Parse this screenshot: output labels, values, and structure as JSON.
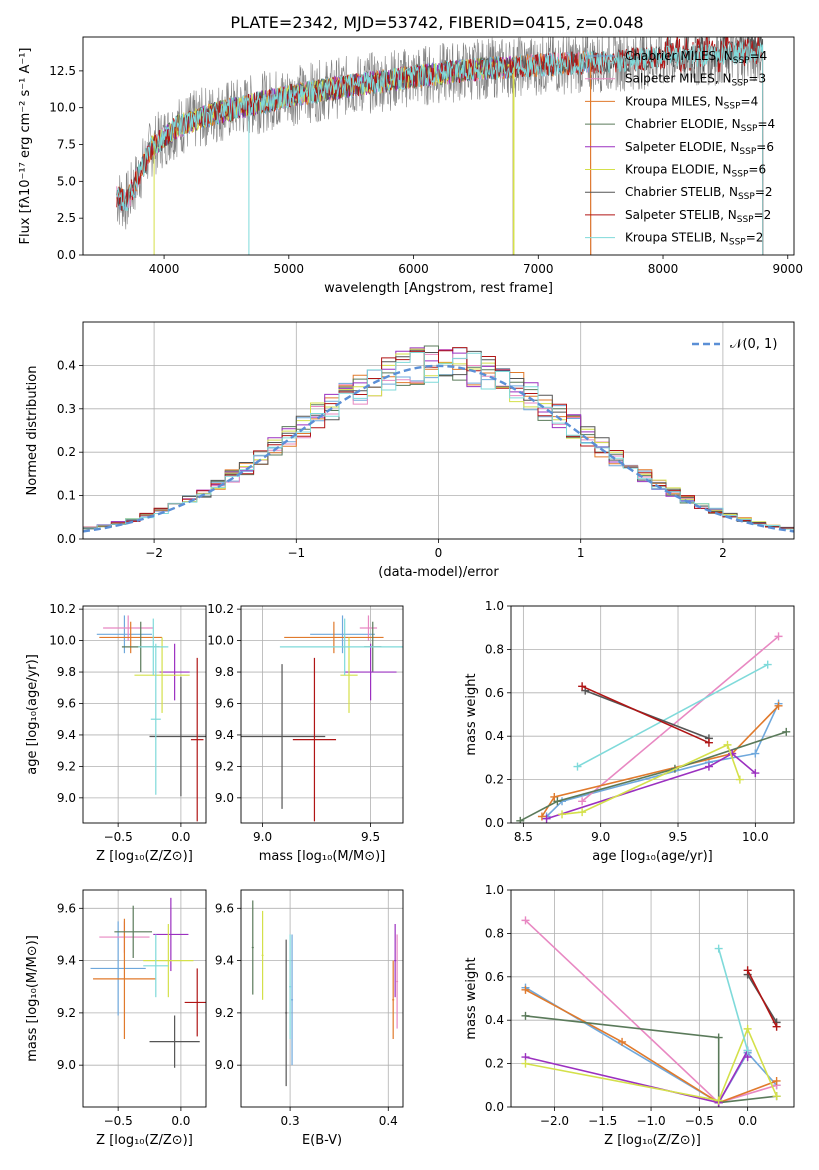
{
  "title": "PLATE=2342, MJD=53742, FIBERID=0415, z=0.048",
  "colors": {
    "chabrier_miles": "#6fa8dc",
    "salpeter_miles": "#e888c2",
    "kroupa_miles": "#e07a2c",
    "chabrier_elodie": "#5a7a5a",
    "salpeter_elodie": "#9b30c0",
    "kroupa_elodie": "#d4e04a",
    "chabrier_stelib": "#555555",
    "salpeter_stelib": "#b01515",
    "kroupa_stelib": "#7fdada"
  },
  "chart_data": [
    {
      "id": "spectrum",
      "type": "line",
      "title": "PLATE=2342, MJD=53742, FIBERID=0415, z=0.048",
      "xlabel": "wavelength [Angstrom, rest frame]",
      "ylabel": "Flux [fλ10⁻¹⁷ erg cm⁻² s⁻¹ A⁻¹]",
      "xlim": [
        3350,
        9050
      ],
      "ylim": [
        0,
        14.8
      ],
      "xticks": [
        4000,
        5000,
        6000,
        7000,
        8000,
        9000
      ],
      "yticks": [
        0.0,
        2.5,
        5.0,
        7.5,
        10.0,
        12.5
      ],
      "grid": false,
      "legend_position": "right",
      "continuum": {
        "x": [
          3600,
          3700,
          3900,
          4100,
          4400,
          4700,
          5000,
          5500,
          6000,
          6500,
          7000,
          7500,
          8000,
          8500,
          8800
        ],
        "y": [
          4.0,
          3.6,
          7.3,
          8.7,
          9.6,
          10.2,
          10.8,
          11.5,
          12.1,
          12.6,
          12.9,
          13.1,
          13.4,
          13.6,
          13.8
        ]
      },
      "series": [
        {
          "name": "Chabrier MILES, N_SSP=4",
          "legend_main": "Chabrier MILES, N",
          "legend_sub": "SSP",
          "legend_tail": "=4",
          "color_key": "chabrier_miles",
          "x_range": [
            3620,
            7420
          ]
        },
        {
          "name": "Salpeter MILES, N_SSP=3",
          "legend_main": "Salpeter MILES, N",
          "legend_sub": "SSP",
          "legend_tail": "=3",
          "color_key": "salpeter_miles",
          "x_range": [
            3620,
            7420
          ]
        },
        {
          "name": "Kroupa MILES, N_SSP=4",
          "legend_main": "Kroupa MILES, N",
          "legend_sub": "SSP",
          "legend_tail": "=4",
          "color_key": "kroupa_miles",
          "x_range": [
            3620,
            7420
          ]
        },
        {
          "name": "Chabrier ELODIE, N_SSP=4",
          "legend_main": "Chabrier ELODIE, N",
          "legend_sub": "SSP",
          "legend_tail": "=4",
          "color_key": "chabrier_elodie",
          "x_range": [
            3900,
            6800
          ]
        },
        {
          "name": "Salpeter ELODIE, N_SSP=6",
          "legend_main": "Salpeter ELODIE, N",
          "legend_sub": "SSP",
          "legend_tail": "=6",
          "color_key": "salpeter_elodie",
          "x_range": [
            3900,
            6800
          ]
        },
        {
          "name": "Kroupa ELODIE, N_SSP=6",
          "legend_main": "Kroupa ELODIE, N",
          "legend_sub": "SSP",
          "legend_tail": "=6",
          "color_key": "kroupa_elodie",
          "x_range": [
            3900,
            6800
          ]
        },
        {
          "name": "Chabrier STELIB, N_SSP=2",
          "legend_main": "Chabrier STELIB, N",
          "legend_sub": "SSP",
          "legend_tail": "=2",
          "color_key": "chabrier_stelib",
          "x_range": [
            3620,
            8800
          ]
        },
        {
          "name": "Salpeter STELIB, N_SSP=2",
          "legend_main": "Salpeter STELIB, N",
          "legend_sub": "SSP",
          "legend_tail": "=2",
          "color_key": "salpeter_stelib",
          "x_range": [
            3620,
            8800
          ]
        },
        {
          "name": "Kroupa STELIB, N_SSP=2",
          "legend_main": "Kroupa STELIB, N",
          "legend_sub": "SSP",
          "legend_tail": "=2",
          "color_key": "kroupa_stelib",
          "x_range": [
            3620,
            8800
          ]
        }
      ]
    },
    {
      "id": "residuals",
      "type": "line",
      "xlabel": "(data-model)/error",
      "ylabel": "Normed distribution",
      "xlim": [
        -2.5,
        2.5
      ],
      "ylim": [
        0,
        0.5
      ],
      "xticks": [
        -2,
        -1,
        0,
        1,
        2
      ],
      "yticks": [
        0.0,
        0.1,
        0.2,
        0.3,
        0.4
      ],
      "grid": true,
      "legend_position": "top-right",
      "reference_curve": {
        "name": "N(0,1)",
        "legend_main": "𝒩(0, 1)",
        "mean": 0,
        "sigma": 1,
        "color": "#5b8fd6"
      },
      "bin_edges_start": -2.5,
      "bin_width": 0.1,
      "n_bins": 50
    },
    {
      "id": "age_vs_Z",
      "type": "scatter",
      "xlabel": "Z [log₁₀(Z/Z⊙)]",
      "ylabel": "age  [log₁₀(age/yr)]",
      "xlim": [
        -0.78,
        0.2
      ],
      "ylim": [
        8.84,
        10.22
      ],
      "xticks": [
        -0.5,
        0.0
      ],
      "yticks": [
        9.0,
        9.2,
        9.4,
        9.6,
        9.8,
        10.0,
        10.2
      ],
      "grid": true,
      "points": [
        {
          "x": -0.45,
          "y": 10.04,
          "xerr": 0.22,
          "yerr": 0.12,
          "color_key": "chabrier_miles"
        },
        {
          "x": -0.42,
          "y": 10.08,
          "xerr": 0.2,
          "yerr": 0.08,
          "color_key": "salpeter_miles"
        },
        {
          "x": -0.4,
          "y": 10.02,
          "xerr": 0.25,
          "yerr": 0.1,
          "color_key": "kroupa_miles"
        },
        {
          "x": -0.32,
          "y": 9.96,
          "xerr": 0.15,
          "yerr": 0.16,
          "color_key": "chabrier_elodie"
        },
        {
          "x": -0.05,
          "y": 9.8,
          "xerr": 0.12,
          "yerr": 0.18,
          "color_key": "salpeter_elodie"
        },
        {
          "x": -0.15,
          "y": 9.78,
          "xerr": 0.22,
          "yerr": 0.24,
          "color_key": "kroupa_elodie"
        },
        {
          "x": -0.22,
          "y": 9.96,
          "xerr": 0.12,
          "yerr": 0.18,
          "color_key": "kroupa_stelib"
        },
        {
          "x": 0.0,
          "y": 9.39,
          "xerr": 0.25,
          "yerr": 0.38,
          "color_key": "chabrier_stelib"
        },
        {
          "x": 0.13,
          "y": 9.37,
          "xerr": 0.05,
          "yerr": 0.52,
          "color_key": "salpeter_stelib"
        },
        {
          "x": -0.2,
          "y": 9.5,
          "xerr": 0.04,
          "yerr": 0.48,
          "color_key": "kroupa_stelib"
        }
      ]
    },
    {
      "id": "age_vs_mass",
      "type": "scatter",
      "xlabel": "mass [log₁₀(M/M⊙)]",
      "ylabel": "",
      "xlim": [
        8.9,
        9.65
      ],
      "ylim": [
        8.84,
        10.22
      ],
      "xticks": [
        9.0,
        9.5
      ],
      "yticks": [
        9.0,
        9.2,
        9.4,
        9.6,
        9.8,
        10.0,
        10.2
      ],
      "grid": true,
      "points": [
        {
          "x": 9.37,
          "y": 10.04,
          "xerr": 0.15,
          "yerr": 0.12,
          "color_key": "chabrier_miles"
        },
        {
          "x": 9.49,
          "y": 10.08,
          "xerr": 0.04,
          "yerr": 0.08,
          "color_key": "salpeter_miles"
        },
        {
          "x": 9.33,
          "y": 10.02,
          "xerr": 0.23,
          "yerr": 0.1,
          "color_key": "kroupa_miles"
        },
        {
          "x": 9.51,
          "y": 9.96,
          "xerr": 0.04,
          "yerr": 0.16,
          "color_key": "chabrier_elodie"
        },
        {
          "x": 9.5,
          "y": 9.8,
          "xerr": 0.12,
          "yerr": 0.18,
          "color_key": "salpeter_elodie"
        },
        {
          "x": 9.4,
          "y": 9.78,
          "xerr": 0.04,
          "yerr": 0.24,
          "color_key": "kroupa_elodie"
        },
        {
          "x": 9.38,
          "y": 9.96,
          "xerr": 0.3,
          "yerr": 0.18,
          "color_key": "kroupa_stelib"
        },
        {
          "x": 9.09,
          "y": 9.39,
          "xerr": 0.2,
          "yerr": 0.46,
          "color_key": "chabrier_stelib"
        },
        {
          "x": 9.24,
          "y": 9.37,
          "xerr": 0.1,
          "yerr": 0.52,
          "color_key": "salpeter_stelib"
        }
      ]
    },
    {
      "id": "weight_vs_age",
      "type": "line",
      "xlabel": "age  [log₁₀(age/yr)]",
      "ylabel": "mass weight",
      "xlim": [
        8.42,
        10.25
      ],
      "ylim": [
        0,
        1.0
      ],
      "xticks": [
        8.5,
        9.0,
        9.5,
        10.0
      ],
      "yticks": [
        0.0,
        0.2,
        0.4,
        0.6,
        0.8,
        1.0
      ],
      "grid": true,
      "series": [
        {
          "color_key": "chabrier_miles",
          "x": [
            8.65,
            8.75,
            9.7,
            10.0,
            10.15
          ],
          "y": [
            0.03,
            0.1,
            0.28,
            0.32,
            0.55
          ]
        },
        {
          "color_key": "salpeter_miles",
          "x": [
            8.88,
            10.15
          ],
          "y": [
            0.1,
            0.86
          ]
        },
        {
          "color_key": "kroupa_miles",
          "x": [
            8.62,
            8.7,
            9.85,
            10.15
          ],
          "y": [
            0.03,
            0.12,
            0.32,
            0.54
          ]
        },
        {
          "color_key": "chabrier_elodie",
          "x": [
            8.48,
            8.72,
            9.48,
            10.2
          ],
          "y": [
            0.01,
            0.1,
            0.25,
            0.42
          ]
        },
        {
          "color_key": "salpeter_elodie",
          "x": [
            8.65,
            9.7,
            9.85,
            10.0
          ],
          "y": [
            0.02,
            0.26,
            0.32,
            0.23
          ]
        },
        {
          "color_key": "kroupa_elodie",
          "x": [
            8.75,
            8.88,
            9.82,
            9.9
          ],
          "y": [
            0.04,
            0.05,
            0.36,
            0.2
          ]
        },
        {
          "color_key": "kroupa_stelib",
          "x": [
            8.85,
            10.08
          ],
          "y": [
            0.26,
            0.73
          ]
        },
        {
          "color_key": "chabrier_stelib",
          "x": [
            8.9,
            9.7
          ],
          "y": [
            0.61,
            0.39
          ]
        },
        {
          "color_key": "salpeter_stelib",
          "x": [
            8.88,
            9.7
          ],
          "y": [
            0.63,
            0.37
          ]
        }
      ]
    },
    {
      "id": "mass_vs_Z",
      "type": "scatter",
      "xlabel": "Z [log₁₀(Z/Z⊙)]",
      "ylabel": "mass [log₁₀(M/M⊙)]",
      "xlim": [
        -0.78,
        0.2
      ],
      "ylim": [
        8.84,
        9.67
      ],
      "xticks": [
        -0.5,
        0.0
      ],
      "yticks": [
        9.0,
        9.2,
        9.4,
        9.6
      ],
      "grid": true,
      "points": [
        {
          "x": -0.5,
          "y": 9.37,
          "xerr": 0.22,
          "yerr": 0.18,
          "color_key": "chabrier_miles"
        },
        {
          "x": -0.45,
          "y": 9.49,
          "xerr": 0.2,
          "yerr": 0.06,
          "color_key": "salpeter_miles"
        },
        {
          "x": -0.45,
          "y": 9.33,
          "xerr": 0.25,
          "yerr": 0.23,
          "color_key": "kroupa_miles"
        },
        {
          "x": -0.38,
          "y": 9.51,
          "xerr": 0.15,
          "yerr": 0.1,
          "color_key": "chabrier_elodie"
        },
        {
          "x": -0.08,
          "y": 9.5,
          "xerr": 0.14,
          "yerr": 0.14,
          "color_key": "salpeter_elodie"
        },
        {
          "x": -0.1,
          "y": 9.4,
          "xerr": 0.2,
          "yerr": 0.14,
          "color_key": "kroupa_elodie"
        },
        {
          "x": -0.2,
          "y": 9.38,
          "xerr": 0.1,
          "yerr": 0.12,
          "color_key": "kroupa_stelib"
        },
        {
          "x": -0.05,
          "y": 9.09,
          "xerr": 0.2,
          "yerr": 0.1,
          "color_key": "chabrier_stelib"
        },
        {
          "x": 0.13,
          "y": 9.24,
          "xerr": 0.1,
          "yerr": 0.13,
          "color_key": "salpeter_stelib"
        }
      ]
    },
    {
      "id": "mass_vs_ebv",
      "type": "scatter",
      "xlabel": "E(B-V)",
      "ylabel": "",
      "xlim": [
        0.25,
        0.415
      ],
      "ylim": [
        8.84,
        9.67
      ],
      "xticks": [
        0.3,
        0.4
      ],
      "yticks": [
        9.0,
        9.2,
        9.4,
        9.6
      ],
      "grid": true,
      "points": [
        {
          "x": 0.262,
          "y": 9.45,
          "xerr": 0.001,
          "yerr": 0.18,
          "color_key": "chabrier_elodie"
        },
        {
          "x": 0.272,
          "y": 9.42,
          "xerr": 0.001,
          "yerr": 0.17,
          "color_key": "kroupa_elodie"
        },
        {
          "x": 0.296,
          "y": 9.2,
          "xerr": 0.001,
          "yerr": 0.28,
          "color_key": "chabrier_stelib"
        },
        {
          "x": 0.3,
          "y": 9.3,
          "xerr": 0.001,
          "yerr": 0.2,
          "color_key": "kroupa_stelib"
        },
        {
          "x": 0.302,
          "y": 9.25,
          "xerr": 0.001,
          "yerr": 0.25,
          "color_key": "chabrier_miles"
        },
        {
          "x": 0.405,
          "y": 9.25,
          "xerr": 0.001,
          "yerr": 0.15,
          "color_key": "kroupa_miles"
        },
        {
          "x": 0.407,
          "y": 9.4,
          "xerr": 0.001,
          "yerr": 0.14,
          "color_key": "salpeter_elodie"
        },
        {
          "x": 0.409,
          "y": 9.32,
          "xerr": 0.001,
          "yerr": 0.18,
          "color_key": "salpeter_miles"
        }
      ]
    },
    {
      "id": "weight_vs_Z",
      "type": "line",
      "xlabel": "Z [log₁₀(Z/Z⊙)]",
      "ylabel": "mass weight",
      "xlim": [
        -2.45,
        0.48
      ],
      "ylim": [
        0,
        1.0
      ],
      "xticks": [
        -2.0,
        -1.5,
        -1.0,
        -0.5,
        0.0
      ],
      "yticks": [
        0.0,
        0.2,
        0.4,
        0.6,
        0.8,
        1.0
      ],
      "grid": true,
      "series": [
        {
          "color_key": "chabrier_miles",
          "x": [
            -2.3,
            -0.3,
            0.0,
            0.3
          ],
          "y": [
            0.55,
            0.02,
            0.25,
            0.1
          ]
        },
        {
          "color_key": "salpeter_miles",
          "x": [
            -2.3,
            -0.3,
            0.3
          ],
          "y": [
            0.86,
            0.02,
            0.1
          ]
        },
        {
          "color_key": "kroupa_miles",
          "x": [
            -2.3,
            -1.3,
            -0.3,
            0.3
          ],
          "y": [
            0.54,
            0.3,
            0.02,
            0.12
          ]
        },
        {
          "color_key": "chabrier_elodie",
          "x": [
            -2.3,
            -0.3,
            -0.3,
            0.3
          ],
          "y": [
            0.42,
            0.32,
            0.02,
            0.05
          ]
        },
        {
          "color_key": "salpeter_elodie",
          "x": [
            -2.3,
            -0.3,
            0.0,
            0.0
          ],
          "y": [
            0.23,
            0.02,
            0.26,
            0.23
          ]
        },
        {
          "color_key": "kroupa_elodie",
          "x": [
            -2.3,
            -0.3,
            0.0,
            0.3
          ],
          "y": [
            0.2,
            0.03,
            0.36,
            0.05
          ]
        },
        {
          "color_key": "kroupa_stelib",
          "x": [
            -0.3,
            0.0
          ],
          "y": [
            0.73,
            0.26
          ]
        },
        {
          "color_key": "chabrier_stelib",
          "x": [
            0.0,
            0.3
          ],
          "y": [
            0.61,
            0.39
          ]
        },
        {
          "color_key": "salpeter_stelib",
          "x": [
            0.0,
            0.3
          ],
          "y": [
            0.63,
            0.37
          ]
        }
      ]
    }
  ]
}
